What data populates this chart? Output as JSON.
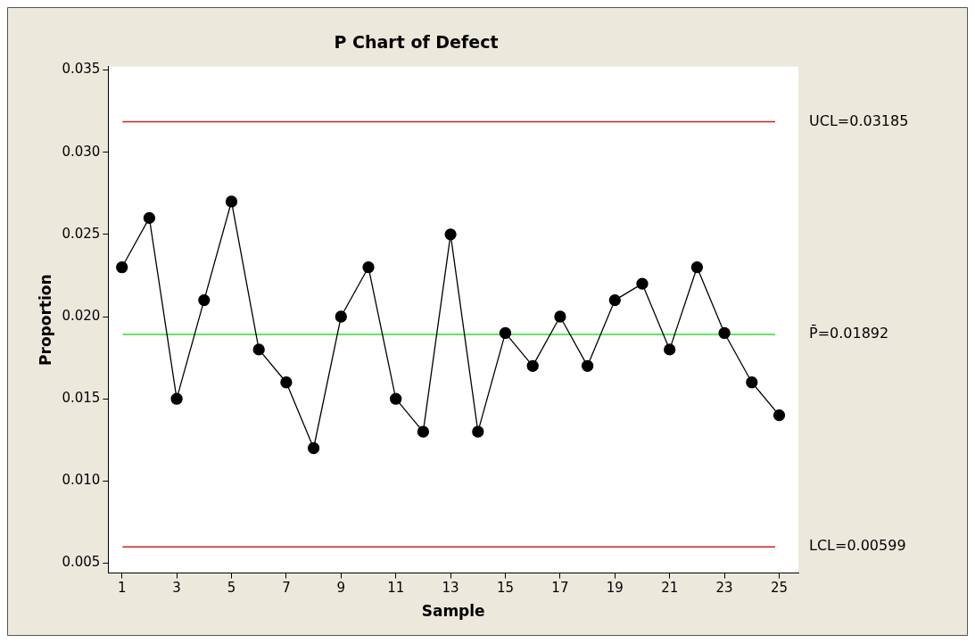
{
  "chart_data": {
    "type": "line",
    "title": "P Chart of Defect",
    "xlabel": "Sample",
    "ylabel": "Proportion",
    "x": [
      1,
      2,
      3,
      4,
      5,
      6,
      7,
      8,
      9,
      10,
      11,
      12,
      13,
      14,
      15,
      16,
      17,
      18,
      19,
      20,
      21,
      22,
      23,
      24,
      25
    ],
    "series": [
      {
        "color": "#000000",
        "values": [
          0.023,
          0.026,
          0.015,
          0.021,
          0.027,
          0.018,
          0.016,
          0.012,
          0.02,
          0.023,
          0.015,
          0.013,
          0.025,
          0.013,
          0.019,
          0.017,
          0.02,
          0.017,
          0.021,
          0.022,
          0.018,
          0.023,
          0.019,
          0.016,
          0.014
        ]
      }
    ],
    "xlim": [
      0.5,
      25.7
    ],
    "xticks": [
      1,
      3,
      5,
      7,
      9,
      11,
      13,
      15,
      17,
      19,
      21,
      23,
      25
    ],
    "ylim": [
      0.0044,
      0.0352
    ],
    "yticks": [
      {
        "value": 0.005,
        "label": "0.005"
      },
      {
        "value": 0.01,
        "label": "0.010"
      },
      {
        "value": 0.015,
        "label": "0.015"
      },
      {
        "value": 0.02,
        "label": "0.020"
      },
      {
        "value": 0.025,
        "label": "0.025"
      },
      {
        "value": 0.03,
        "label": "0.030"
      },
      {
        "value": 0.035,
        "label": "0.035"
      }
    ],
    "ref_lines": [
      {
        "axis": "y",
        "value": 0.03185,
        "label": "UCL=0.03185",
        "color": "#cc2222"
      },
      {
        "axis": "y",
        "value": 0.01892,
        "label": "P̄=0.01892",
        "color": "#33dd33"
      },
      {
        "axis": "y",
        "value": 0.00599,
        "label": "LCL=0.00599",
        "color": "#cc2222"
      }
    ],
    "marker": "circle",
    "line_style": "solid",
    "grid": false,
    "legend": false
  }
}
